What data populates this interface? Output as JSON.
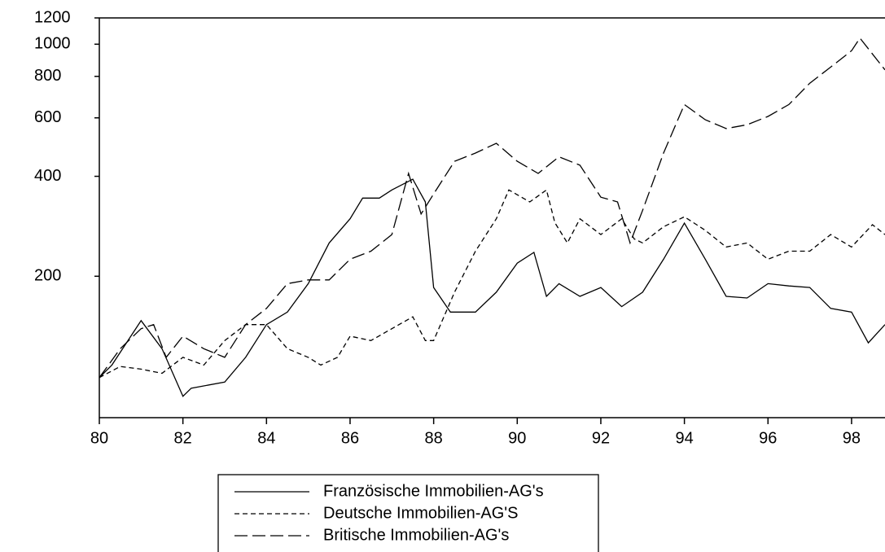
{
  "chart_data": {
    "type": "line",
    "log_y": true,
    "xlim": [
      80,
      98.8
    ],
    "xticks": [
      80,
      82,
      84,
      86,
      88,
      90,
      92,
      94,
      96,
      98
    ],
    "ylim": [
      75,
      1200
    ],
    "yticks": [
      200,
      400,
      600,
      800,
      1000,
      1200
    ],
    "series": [
      {
        "name": "Französische Immobilien-AG's",
        "color": "#000000",
        "dash": "solid",
        "x": [
          80.0,
          80.3,
          81.0,
          81.5,
          82.0,
          82.2,
          83.0,
          83.5,
          84.0,
          84.5,
          85.0,
          85.5,
          86.0,
          86.3,
          86.7,
          87.0,
          87.5,
          87.8,
          88.0,
          88.4,
          89.0,
          89.5,
          90.0,
          90.4,
          90.7,
          91.0,
          91.5,
          92.0,
          92.5,
          93.0,
          93.5,
          94.0,
          94.5,
          95.0,
          95.5,
          96.0,
          96.5,
          97.0,
          97.5,
          98.0,
          98.4,
          98.8
        ],
        "values": [
          99,
          108,
          147,
          121,
          87,
          92,
          96,
          114,
          143,
          156,
          190,
          252,
          298,
          344,
          344,
          364,
          392,
          335,
          185,
          156,
          156,
          179,
          219,
          236,
          174,
          190,
          174,
          185,
          162,
          179,
          225,
          289,
          225,
          174,
          172,
          190,
          187,
          185,
          160,
          156,
          126,
          143
        ]
      },
      {
        "name": "Deutsche Immobilien-AG'S",
        "color": "#000000",
        "dash": "short",
        "x": [
          80.0,
          80.5,
          81.0,
          81.5,
          82.0,
          82.5,
          83.0,
          83.5,
          84.0,
          84.5,
          85.0,
          85.3,
          85.7,
          86.0,
          86.5,
          87.0,
          87.5,
          87.8,
          88.0,
          88.5,
          89.0,
          89.5,
          89.8,
          90.3,
          90.7,
          90.9,
          91.2,
          91.5,
          92.0,
          92.5,
          92.8,
          93.0,
          93.5,
          94.0,
          94.5,
          95.0,
          95.5,
          96.0,
          96.5,
          97.0,
          97.5,
          98.0,
          98.5,
          98.8
        ],
        "values": [
          99,
          107,
          105,
          102,
          114,
          108,
          128,
          143,
          143,
          121,
          114,
          108,
          114,
          132,
          128,
          139,
          151,
          128,
          128,
          179,
          238,
          298,
          364,
          335,
          364,
          290,
          252,
          298,
          267,
          298,
          259,
          252,
          282,
          302,
          275,
          245,
          252,
          225,
          238,
          238,
          267,
          245,
          286,
          267
        ]
      },
      {
        "name": "Britische Immobilien-AG's",
        "color": "#000000",
        "dash": "long",
        "x": [
          80.0,
          80.5,
          81.0,
          81.3,
          81.6,
          82.0,
          82.5,
          83.0,
          83.5,
          84.0,
          84.5,
          85.0,
          85.5,
          86.0,
          86.5,
          87.0,
          87.4,
          87.7,
          88.0,
          88.5,
          89.0,
          89.5,
          90.0,
          90.5,
          91.0,
          91.5,
          92.0,
          92.4,
          92.7,
          93.0,
          93.5,
          94.0,
          94.5,
          95.0,
          95.5,
          96.0,
          96.5,
          97.0,
          97.5,
          98.0,
          98.2,
          98.8
        ],
        "values": [
          99,
          121,
          139,
          143,
          114,
          132,
          121,
          114,
          143,
          160,
          190,
          195,
          195,
          225,
          238,
          267,
          408,
          308,
          354,
          444,
          470,
          503,
          444,
          408,
          458,
          432,
          346,
          335,
          252,
          316,
          470,
          658,
          592,
          557,
          572,
          606,
          658,
          763,
          853,
          956,
          1043,
          837
        ]
      }
    ]
  }
}
